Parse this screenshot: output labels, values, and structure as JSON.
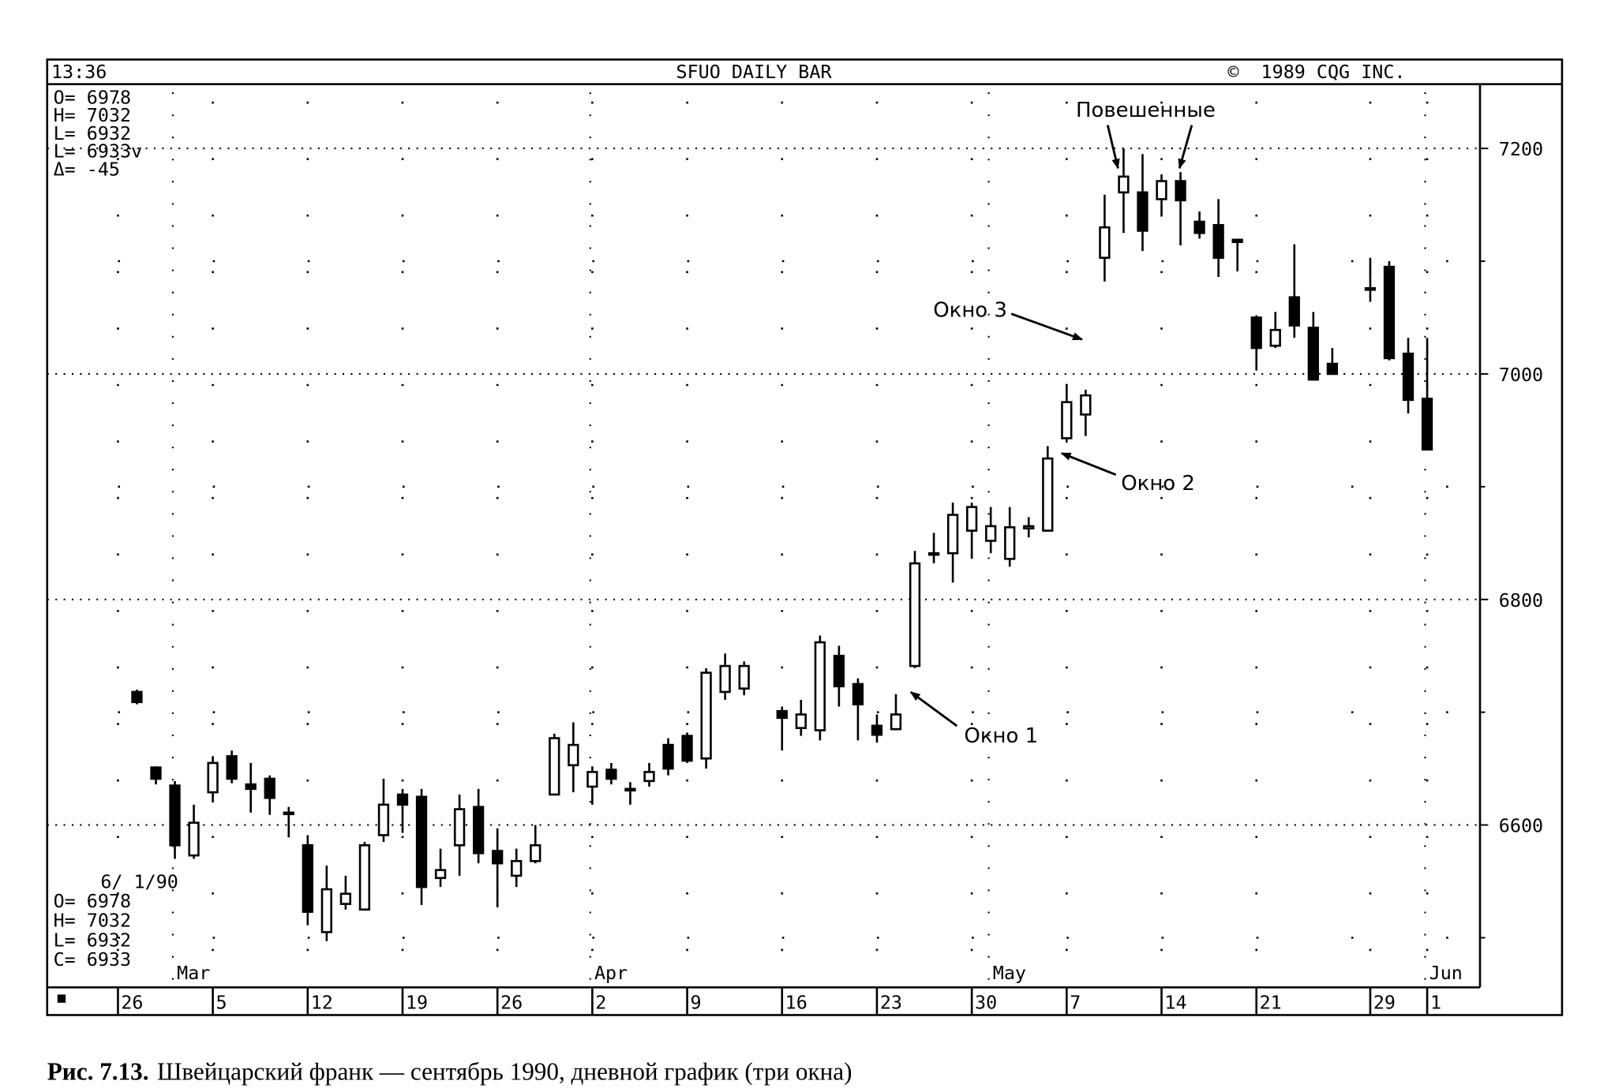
{
  "chart_data": {
    "type": "candlestick",
    "time": "13:36",
    "title": "SFUO DAILY BAR",
    "copyright": "©  1989 CQG INC.",
    "info_top": [
      "O= 6978",
      "H= 7032",
      "L= 6932",
      "L= 6933v",
      "Δ=  -45"
    ],
    "info_bottom": [
      "6/ 1/90",
      "O= 6978",
      "H= 7032",
      "L= 6932",
      "C= 6933"
    ],
    "categories": [
      "26",
      null,
      null,
      null,
      null,
      "5",
      null,
      null,
      null,
      null,
      "12",
      null,
      null,
      null,
      null,
      "19",
      null,
      null,
      null,
      null,
      "26",
      null,
      null,
      null,
      null,
      "2",
      null,
      null,
      null,
      null,
      "9",
      null,
      null,
      null,
      null,
      "16",
      null,
      null,
      null,
      null,
      "23",
      null,
      null,
      null,
      null,
      "30",
      null,
      null,
      null,
      null,
      "7",
      null,
      null,
      null,
      null,
      "14",
      null,
      null,
      null,
      null,
      "21",
      null,
      null,
      null,
      null,
      null,
      "29",
      null,
      null,
      "1"
    ],
    "month_labels": [
      null,
      null,
      null,
      "Mar",
      null,
      null,
      null,
      null,
      null,
      null,
      null,
      null,
      null,
      null,
      null,
      null,
      null,
      null,
      null,
      null,
      null,
      null,
      null,
      null,
      null,
      "Apr",
      null,
      null,
      null,
      null,
      null,
      null,
      null,
      null,
      null,
      null,
      null,
      null,
      null,
      null,
      null,
      null,
      null,
      null,
      null,
      null,
      "May",
      null,
      null,
      null,
      null,
      null,
      null,
      null,
      null,
      null,
      null,
      null,
      null,
      null,
      null,
      null,
      null,
      null,
      null,
      null,
      null,
      null,
      null,
      "Jun"
    ],
    "open": [
      null,
      6718,
      6651,
      6635,
      6573,
      6629,
      6661,
      6636,
      6641,
      6611,
      6582,
      6505,
      6530,
      6525,
      6591,
      6627,
      6625,
      6553,
      6582,
      6616,
      6577,
      6555,
      6568,
      6627,
      6653,
      6634,
      6649,
      6632,
      6639,
      6671,
      6679,
      6659,
      6718,
      6721,
      null,
      6701,
      6686,
      6684,
      6750,
      6725,
      6688,
      6685,
      6741,
      6840,
      6841,
      6861,
      6852,
      6836,
      6863,
      6861,
      6943,
      6964,
      7103,
      7161,
      7161,
      7155,
      7171,
      7135,
      7132,
      7119,
      7050,
      7025,
      7068,
      7041,
      7009,
      null,
      7076,
      7095,
      7018,
      6978
    ],
    "high": [
      null,
      6720,
      6652,
      6639,
      6618,
      6661,
      6666,
      6655,
      6644,
      6616,
      6591,
      6564,
      6555,
      6585,
      6641,
      6632,
      6632,
      6579,
      6627,
      6632,
      6597,
      6579,
      6600,
      6681,
      6691,
      6652,
      6655,
      6638,
      6655,
      6677,
      6682,
      6739,
      6752,
      6745,
      null,
      6705,
      6711,
      6768,
      6759,
      6730,
      6698,
      6716,
      6843,
      6859,
      6886,
      6886,
      6882,
      6882,
      6873,
      6936,
      6991,
      6986,
      7159,
      7200,
      7195,
      7177,
      7179,
      7144,
      7155,
      7120,
      7052,
      7055,
      7115,
      7055,
      7023,
      null,
      7103,
      7100,
      7032,
      7032
    ],
    "low": [
      null,
      6707,
      6636,
      6570,
      6570,
      6620,
      6637,
      6611,
      6609,
      6589,
      6511,
      6497,
      6525,
      6525,
      6585,
      6593,
      6529,
      6545,
      6555,
      6566,
      6527,
      6545,
      6566,
      6627,
      6629,
      6618,
      6636,
      6618,
      6634,
      6644,
      6655,
      6650,
      6711,
      6715,
      null,
      6666,
      6679,
      6675,
      6705,
      6675,
      6673,
      6684,
      6739,
      6832,
      6815,
      6836,
      6841,
      6829,
      6855,
      6861,
      6941,
      6945,
      7082,
      7125,
      7109,
      7141,
      7114,
      7120,
      7086,
      7091,
      7003,
      7023,
      7032,
      6994,
      7000,
      null,
      7064,
      7012,
      6965,
      6932
    ],
    "close": [
      null,
      6709,
      6641,
      6582,
      6602,
      6655,
      6641,
      6632,
      6624,
      6611,
      6523,
      6543,
      6539,
      6582,
      6618,
      6618,
      6545,
      6560,
      6614,
      6575,
      6566,
      6568,
      6582,
      6677,
      6671,
      6647,
      6641,
      6631,
      6647,
      6650,
      6657,
      6735,
      6741,
      6741,
      null,
      6695,
      6698,
      6762,
      6723,
      6707,
      6680,
      6698,
      6832,
      6841,
      6875,
      6882,
      6865,
      6864,
      6865,
      6925,
      6975,
      6981,
      7130,
      7175,
      7127,
      7171,
      7154,
      7125,
      7103,
      7117,
      7023,
      7039,
      7043,
      6995,
      7000,
      null,
      7075,
      7014,
      6977,
      6933
    ],
    "up_color": "#ffffff",
    "down_color": "#000000",
    "ylim": [
      6456,
      7257
    ],
    "yticks": [
      6600,
      6800,
      7000,
      7200
    ],
    "minor_yticks": [
      6500,
      6700,
      6900,
      7100
    ],
    "grid": true,
    "annotations": [
      "Повешенные",
      "Окно 3",
      "Окно 2",
      "Окно 1"
    ],
    "figure_label": "Рис. 7.13.",
    "caption": "Швейцарский франк — сентябрь 1990, дневной график (три окна)"
  }
}
